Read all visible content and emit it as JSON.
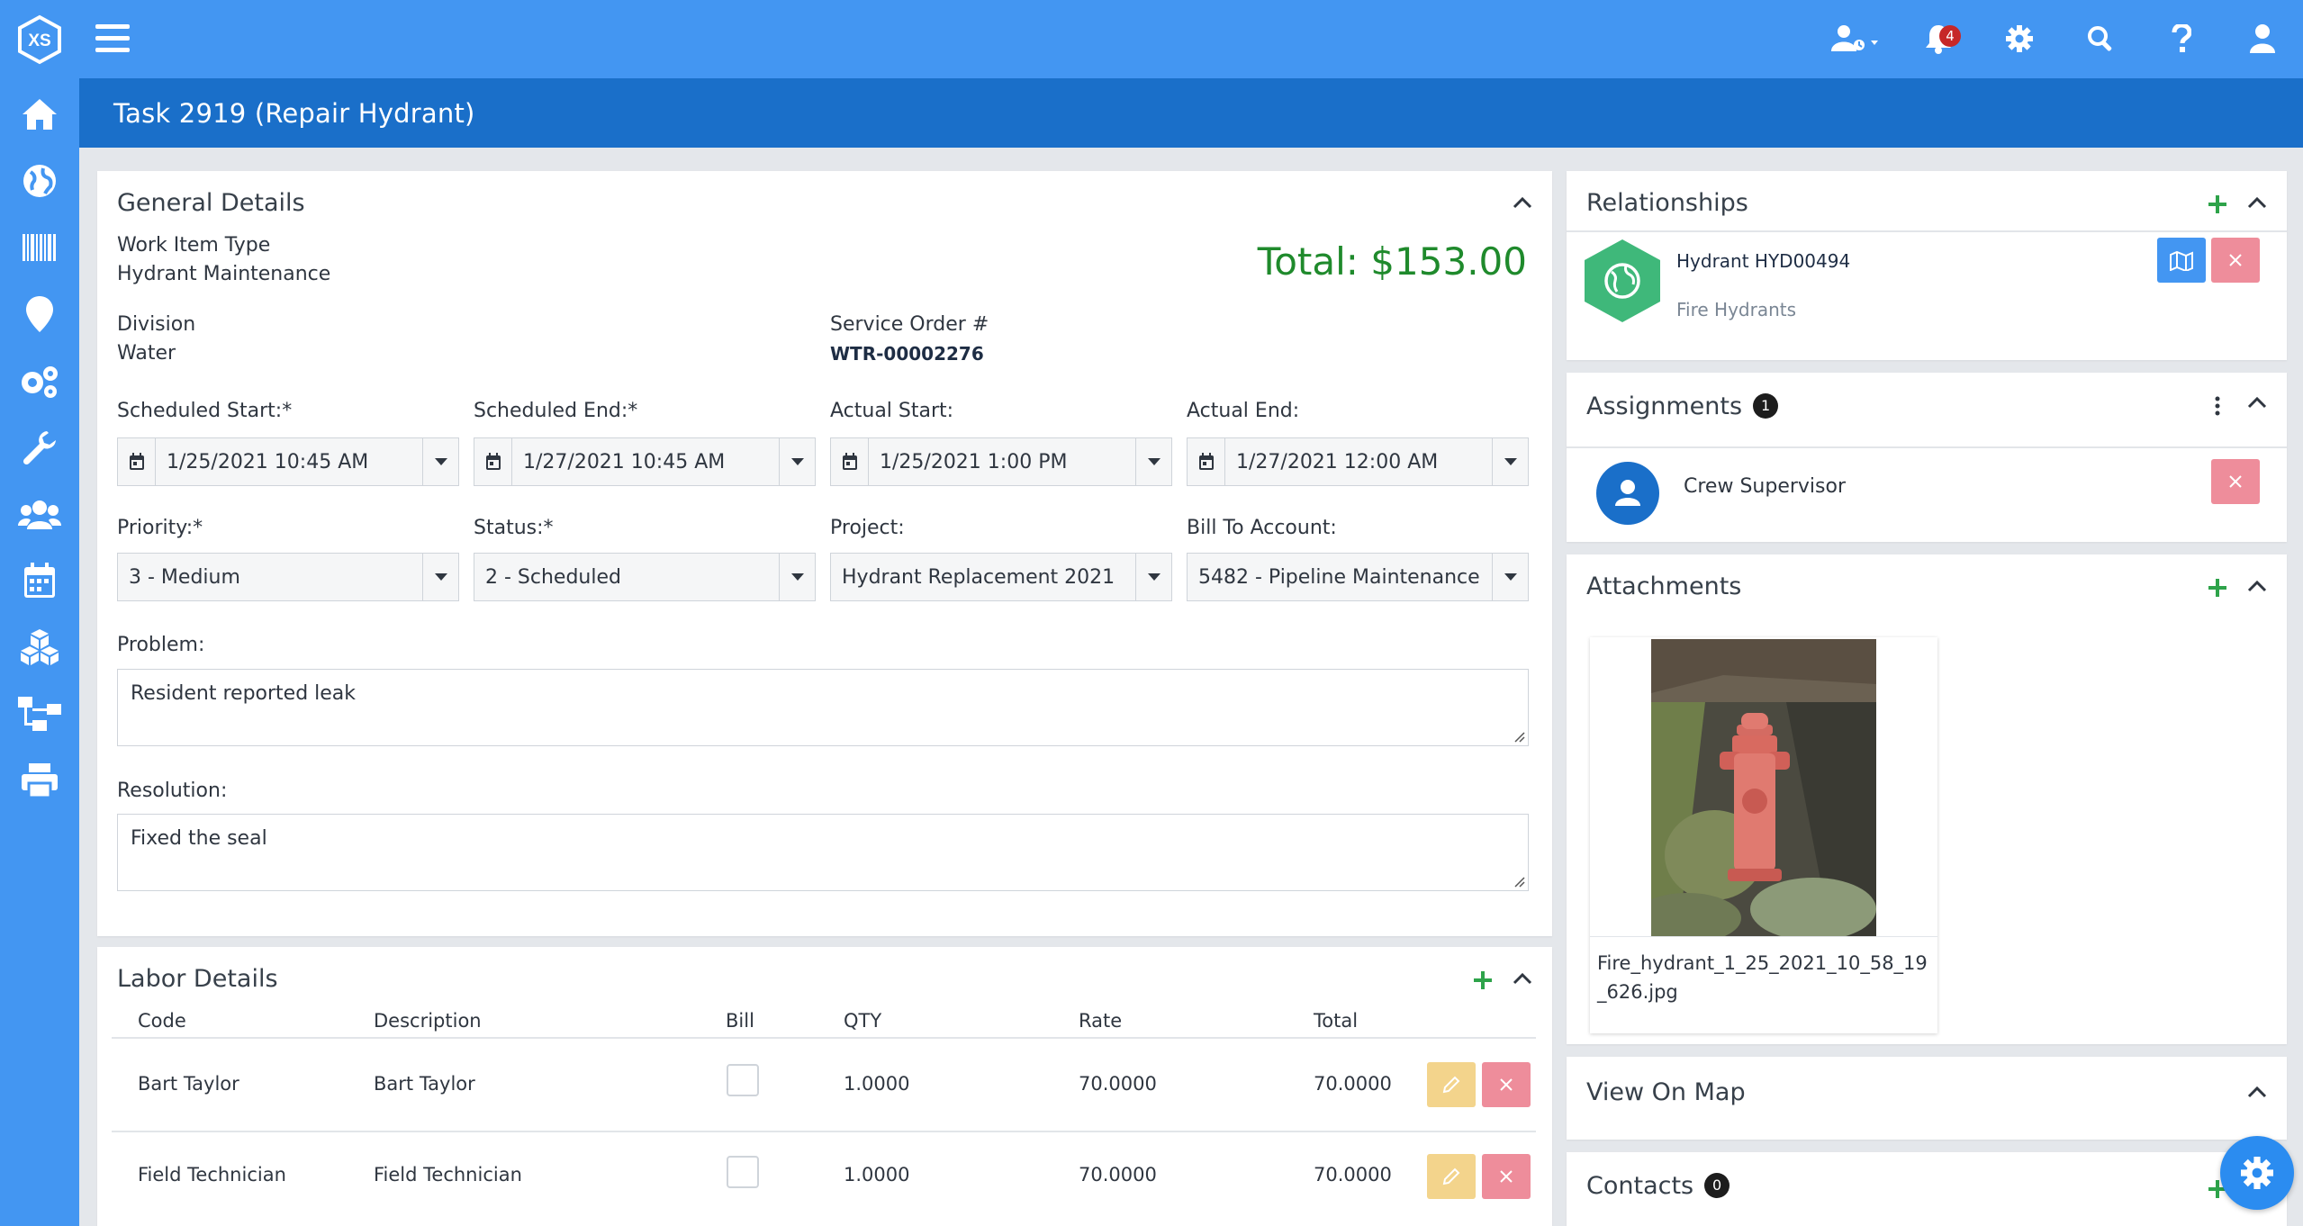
{
  "app": {
    "logo_text": "XS",
    "notification_count": "4"
  },
  "sidebar": {
    "items": [
      {
        "icon": "home-icon"
      },
      {
        "icon": "globe-icon"
      },
      {
        "icon": "barcode-icon"
      },
      {
        "icon": "map-pin-icon"
      },
      {
        "icon": "gears-icon"
      },
      {
        "icon": "wrench-icon"
      },
      {
        "icon": "users-icon"
      },
      {
        "icon": "calendar-icon"
      },
      {
        "icon": "cubes-icon"
      },
      {
        "icon": "sitemap-icon"
      },
      {
        "icon": "print-icon"
      }
    ]
  },
  "page": {
    "title": "Task 2919 (Repair Hydrant)"
  },
  "general": {
    "title": "General Details",
    "total": "Total: $153.00",
    "work_item_type_label": "Work Item Type",
    "work_item_type_value": "Hydrant Maintenance",
    "division_label": "Division",
    "division_value": "Water",
    "service_order_label": "Service Order #",
    "service_order_value": "WTR-00002276",
    "scheduled_start_label": "Scheduled Start:*",
    "scheduled_start_value": "1/25/2021 10:45 AM",
    "scheduled_end_label": "Scheduled End:*",
    "scheduled_end_value": "1/27/2021 10:45 AM",
    "actual_start_label": "Actual Start:",
    "actual_start_value": "1/25/2021 1:00 PM",
    "actual_end_label": "Actual End:",
    "actual_end_value": "1/27/2021 12:00 AM",
    "priority_label": "Priority:*",
    "priority_value": "3 - Medium",
    "status_label": "Status:*",
    "status_value": "2 - Scheduled",
    "project_label": "Project:",
    "project_value": "Hydrant Replacement 2021",
    "bill_to_label": "Bill To Account:",
    "bill_to_value": "5482 - Pipeline Maintenance",
    "problem_label": "Problem:",
    "problem_value": "Resident reported leak",
    "resolution_label": "Resolution:",
    "resolution_value": "Fixed the seal"
  },
  "labor": {
    "title": "Labor Details",
    "columns": [
      "Code",
      "Description",
      "Bill",
      "QTY",
      "Rate",
      "Total"
    ],
    "rows": [
      {
        "code": "Bart Taylor",
        "description": "Bart Taylor",
        "qty": "1.0000",
        "rate": "70.0000",
        "total": "70.0000"
      },
      {
        "code": "Field Technician",
        "description": "Field Technician",
        "qty": "1.0000",
        "rate": "70.0000",
        "total": "70.0000"
      }
    ]
  },
  "relationships": {
    "title": "Relationships",
    "item_name": "Hydrant HYD00494",
    "item_type": "Fire Hydrants"
  },
  "assignments": {
    "title": "Assignments",
    "count": "1",
    "item_name": "Crew Supervisor"
  },
  "attachments": {
    "title": "Attachments",
    "file_name_line1": "Fire_hydrant_1_25_2021_10_58_19",
    "file_name_line2": "_626.jpg"
  },
  "map": {
    "title": "View On Map"
  },
  "contacts": {
    "title": "Contacts",
    "count": "0"
  },
  "colors": {
    "primary": "#4396f2",
    "title_bar": "#1a6fc9",
    "total_green": "#1f8a2c",
    "hex_green": "#3fb87a",
    "edit_yellow": "#f3d48c",
    "delete_pink": "#ee8d9b"
  }
}
